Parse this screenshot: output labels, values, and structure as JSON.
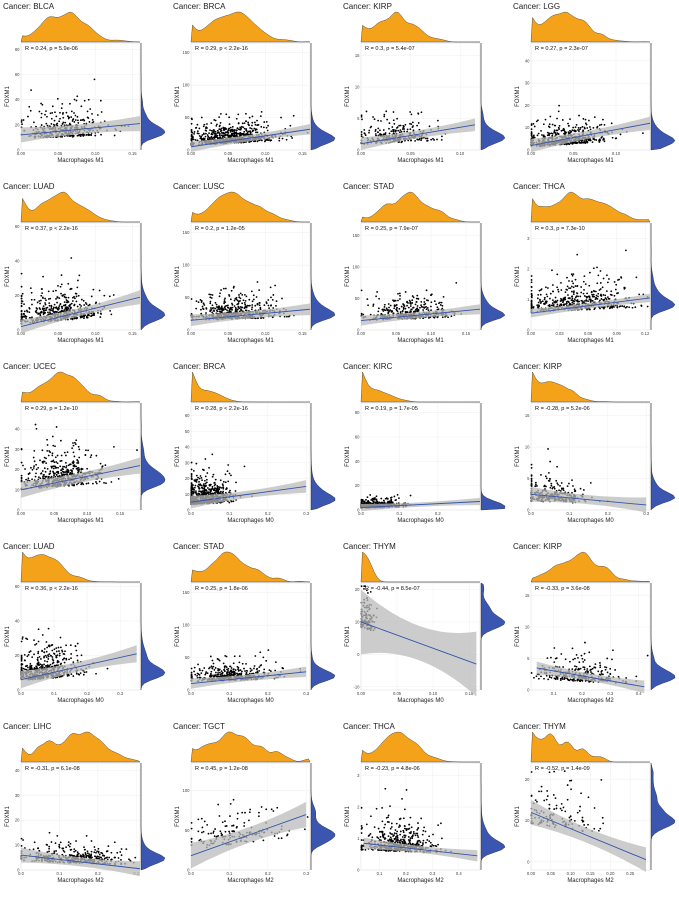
{
  "colors": {
    "density_top": "#f5a21b",
    "density_right": "#3a56b0",
    "points": "#000000",
    "line": "#3355aa",
    "band": "#bbbbbb"
  },
  "chart_data": [
    {
      "type": "scatter",
      "title": "Cancer: BLCA",
      "stat": "R = 0.24, p = 5.9e-06",
      "xlabel": "Macrophages M1",
      "ylabel": "FOXM1",
      "xlim": [
        0,
        0.16
      ],
      "ylim": [
        0,
        85
      ],
      "xticks": [
        "0.00",
        "0.05",
        "0.10",
        "0.15"
      ],
      "yticks": [
        "0",
        "20",
        "40",
        "60",
        "80"
      ],
      "xtv": [
        0,
        0.05,
        0.1,
        0.15
      ],
      "ytv": [
        0,
        20,
        40,
        60,
        80
      ],
      "fit": [
        [
          0,
          12
        ],
        [
          0.16,
          21
        ]
      ],
      "band": [
        3,
        6
      ],
      "xc": 0.06,
      "xs": 0.028,
      "yc": 12,
      "ys": 10,
      "n": 340,
      "seed": 11
    },
    {
      "type": "scatter",
      "title": "Cancer: BRCA",
      "stat": "R = 0.29, p < 2.2e-16",
      "xlabel": "Macrophages M1",
      "ylabel": "FOXM1",
      "xlim": [
        0,
        0.16
      ],
      "ylim": [
        0,
        165
      ],
      "xticks": [
        "0.00",
        "0.05",
        "0.10",
        "0.15"
      ],
      "yticks": [
        "0",
        "50",
        "100",
        "150"
      ],
      "xtv": [
        0,
        0.05,
        0.1,
        0.15
      ],
      "ytv": [
        0,
        50,
        100,
        150
      ],
      "fit": [
        [
          0,
          5
        ],
        [
          0.16,
          32
        ]
      ],
      "band": [
        3,
        8
      ],
      "xc": 0.055,
      "xs": 0.03,
      "yc": 15,
      "ys": 14,
      "n": 700,
      "seed": 12
    },
    {
      "type": "scatter",
      "title": "Cancer: KIRP",
      "stat": "R = 0.3, p = 5.4e-07",
      "xlabel": "Macrophages M1",
      "ylabel": "FOXM1",
      "xlim": [
        0,
        0.12
      ],
      "ylim": [
        0,
        17
      ],
      "xticks": [
        "0.00",
        "0.05",
        "0.10"
      ],
      "yticks": [
        "0",
        "5",
        "10",
        "15"
      ],
      "xtv": [
        0,
        0.05,
        0.1
      ],
      "ytv": [
        0,
        5,
        10,
        15
      ],
      "fit": [
        [
          0,
          1
        ],
        [
          0.115,
          4
        ]
      ],
      "band": [
        0.4,
        1
      ],
      "xc": 0.035,
      "xs": 0.02,
      "yc": 1.5,
      "ys": 1.6,
      "n": 280,
      "seed": 13
    },
    {
      "type": "scatter",
      "title": "Cancer: LGG",
      "stat": "R = 0.27, p = 2.3e-07",
      "xlabel": "Macrophages M1",
      "ylabel": "FOXM1",
      "xlim": [
        0,
        0.14
      ],
      "ylim": [
        0,
        48
      ],
      "xticks": [
        "0.00",
        "0.05",
        "0.10"
      ],
      "yticks": [
        "0",
        "10",
        "20",
        "30",
        "40"
      ],
      "xtv": [
        0,
        0.05,
        0.1
      ],
      "ytv": [
        0,
        10,
        20,
        30,
        40
      ],
      "fit": [
        [
          0,
          2
        ],
        [
          0.14,
          12
        ]
      ],
      "band": [
        1,
        3
      ],
      "xc": 0.04,
      "xs": 0.025,
      "yc": 3,
      "ys": 4,
      "n": 500,
      "seed": 14
    },
    {
      "type": "scatter",
      "title": "Cancer: LUAD",
      "stat": "R = 0.37, p < 2.2e-16",
      "xlabel": "Macrophages M1",
      "ylabel": "FOXM1",
      "xlim": [
        0,
        0.16
      ],
      "ylim": [
        0,
        62
      ],
      "xticks": [
        "0.00",
        "0.05",
        "0.10",
        "0.15"
      ],
      "yticks": [
        "0",
        "20",
        "40",
        "60"
      ],
      "xtv": [
        0,
        0.05,
        0.1,
        0.15
      ],
      "ytv": [
        0,
        20,
        40,
        60
      ],
      "fit": [
        [
          0,
          2
        ],
        [
          0.16,
          19
        ]
      ],
      "band": [
        1,
        4
      ],
      "xc": 0.05,
      "xs": 0.028,
      "yc": 8,
      "ys": 8,
      "n": 480,
      "seed": 15
    },
    {
      "type": "scatter",
      "title": "Cancer: LUSC",
      "stat": "R = 0.2, p = 1.2e-05",
      "xlabel": "Macrophages M1",
      "ylabel": "FOXM1",
      "xlim": [
        0,
        0.16
      ],
      "ylim": [
        0,
        165
      ],
      "xticks": [
        "0.00",
        "0.05",
        "0.10",
        "0.15"
      ],
      "yticks": [
        "0",
        "50",
        "100",
        "150"
      ],
      "xtv": [
        0,
        0.05,
        0.1,
        0.15
      ],
      "ytv": [
        0,
        50,
        100,
        150
      ],
      "fit": [
        [
          0,
          15
        ],
        [
          0.16,
          32
        ]
      ],
      "band": [
        4,
        9
      ],
      "xc": 0.06,
      "xs": 0.03,
      "yc": 22,
      "ys": 16,
      "n": 480,
      "seed": 16
    },
    {
      "type": "scatter",
      "title": "Cancer: STAD",
      "stat": "R = 0.25, p = 7.9e-07",
      "xlabel": "Macrophages M1",
      "ylabel": "FOXM1",
      "xlim": [
        0,
        0.17
      ],
      "ylim": [
        0,
        170
      ],
      "xticks": [
        "0.00",
        "0.05",
        "0.10",
        "0.15"
      ],
      "yticks": [
        "0",
        "50",
        "100",
        "150"
      ],
      "xtv": [
        0,
        0.05,
        0.1,
        0.15
      ],
      "ytv": [
        0,
        50,
        100,
        150
      ],
      "fit": [
        [
          0,
          15
        ],
        [
          0.17,
          33
        ]
      ],
      "band": [
        3,
        8
      ],
      "xc": 0.07,
      "xs": 0.03,
      "yc": 22,
      "ys": 15,
      "n": 380,
      "seed": 17
    },
    {
      "type": "scatter",
      "title": "Cancer: THCA",
      "stat": "R = 0.3, p = 7.3e-10",
      "xlabel": "Macrophages M1",
      "ylabel": "FOXM1",
      "xlim": [
        0,
        0.125
      ],
      "ylim": [
        0,
        3.5
      ],
      "xticks": [
        "0.00",
        "0.03",
        "0.06",
        "0.09",
        "0.12"
      ],
      "yticks": [
        "0",
        "1",
        "2",
        "3"
      ],
      "xtv": [
        0,
        0.03,
        0.06,
        0.09,
        0.12
      ],
      "ytv": [
        0,
        1,
        2,
        3
      ],
      "fit": [
        [
          0,
          0.55
        ],
        [
          0.125,
          1.05
        ]
      ],
      "band": [
        0.06,
        0.14
      ],
      "xc": 0.05,
      "xs": 0.03,
      "yc": 0.8,
      "ys": 0.45,
      "n": 480,
      "seed": 18
    },
    {
      "type": "scatter",
      "title": "Cancer: UCEC",
      "stat": "R = 0.29, p = 1.2e-10",
      "xlabel": "Macrophages M1",
      "ylabel": "FOXM1",
      "xlim": [
        0,
        0.18
      ],
      "ylim": [
        0,
        53
      ],
      "xticks": [
        "0.00",
        "0.05",
        "0.10",
        "0.15"
      ],
      "yticks": [
        "0",
        "10",
        "20",
        "30",
        "40"
      ],
      "xtv": [
        0,
        0.05,
        0.1,
        0.15
      ],
      "ytv": [
        0,
        10,
        20,
        30,
        40
      ],
      "fit": [
        [
          0,
          10
        ],
        [
          0.18,
          22
        ]
      ],
      "band": [
        1.5,
        4
      ],
      "xc": 0.06,
      "xs": 0.03,
      "yc": 14,
      "ys": 8,
      "n": 500,
      "seed": 19
    },
    {
      "type": "scatter",
      "title": "Cancer: BRCA",
      "stat": "R = 0.28, p < 2.2e-16",
      "xlabel": "Macrophages M0",
      "ylabel": "FOXM1",
      "xlim": [
        0,
        0.31
      ],
      "ylim": [
        0,
        68
      ],
      "xticks": [
        "0.0",
        "0.1",
        "0.2",
        "0.3"
      ],
      "yticks": [
        "0",
        "10",
        "20",
        "30",
        "40",
        "50",
        "60"
      ],
      "xtv": [
        0,
        0.1,
        0.2,
        0.3
      ],
      "ytv": [
        0,
        10,
        20,
        30,
        40,
        50,
        60
      ],
      "fit": [
        [
          0,
          5
        ],
        [
          0.3,
          15
        ]
      ],
      "band": [
        1,
        4
      ],
      "xc": 0.03,
      "xs": 0.04,
      "yc": 6,
      "ys": 7,
      "n": 700,
      "seed": 20
    },
    {
      "type": "scatter",
      "title": "Cancer: KIRC",
      "stat": "R = 0.19, p = 1.7e-05",
      "xlabel": "Macrophages M0",
      "ylabel": "FOXM1",
      "xlim": [
        0,
        0.31
      ],
      "ylim": [
        0,
        88
      ],
      "xticks": [
        "0.0",
        "0.1",
        "0.2"
      ],
      "yticks": [
        "0",
        "20",
        "40",
        "60",
        "80"
      ],
      "xtv": [
        0,
        0.1,
        0.2
      ],
      "ytv": [
        0,
        20,
        40,
        60,
        80
      ],
      "fit": [
        [
          0,
          2
        ],
        [
          0.31,
          7
        ]
      ],
      "band": [
        1,
        3
      ],
      "xc": 0.03,
      "xs": 0.04,
      "yc": 3,
      "ys": 3,
      "n": 480,
      "seed": 21
    },
    {
      "type": "scatter",
      "title": "Cancer: KIRP",
      "stat": "R = -0.28, p = 5.2e-06",
      "xlabel": "Macrophages M0",
      "ylabel": "FOXM1",
      "xlim": [
        0,
        0.31
      ],
      "ylim": [
        0,
        17
      ],
      "xticks": [
        "0.0",
        "0.1",
        "0.2",
        "0.3"
      ],
      "yticks": [
        "0",
        "5",
        "10",
        "15"
      ],
      "xtv": [
        0,
        0.1,
        0.2,
        0.3
      ],
      "ytv": [
        0,
        5,
        10,
        15
      ],
      "fit": [
        [
          0,
          2.5
        ],
        [
          0.3,
          0.8
        ]
      ],
      "band": [
        0.4,
        1.2
      ],
      "xc": 0.05,
      "xs": 0.05,
      "yc": 1.6,
      "ys": 1.8,
      "n": 280,
      "seed": 22
    },
    {
      "type": "scatter",
      "title": "Cancer: LUAD",
      "stat": "R = 0.36, p < 2.2e-16",
      "xlabel": "Macrophages M0",
      "ylabel": "FOXM1",
      "xlim": [
        0,
        0.36
      ],
      "ylim": [
        0,
        62
      ],
      "xticks": [
        "0.0",
        "0.1",
        "0.2",
        "0.3"
      ],
      "yticks": [
        "0",
        "20",
        "40",
        "60"
      ],
      "xtv": [
        0,
        0.1,
        0.2,
        0.3
      ],
      "ytv": [
        0,
        20,
        40,
        60
      ],
      "fit": [
        [
          0,
          6
        ],
        [
          0.35,
          21
        ]
      ],
      "band": [
        1,
        5
      ],
      "xc": 0.07,
      "xs": 0.055,
      "yc": 9,
      "ys": 8,
      "n": 480,
      "seed": 23
    },
    {
      "type": "scatter",
      "title": "Cancer: STAD",
      "stat": "R = 0.25, p = 1.8e-06",
      "xlabel": "Macrophages M0",
      "ylabel": "FOXM1",
      "xlim": [
        0,
        0.31
      ],
      "ylim": [
        0,
        165
      ],
      "xticks": [
        "0.0",
        "0.1",
        "0.2",
        "0.3"
      ],
      "yticks": [
        "0",
        "50",
        "100",
        "150"
      ],
      "xtv": [
        0,
        0.1,
        0.2,
        0.3
      ],
      "ytv": [
        0,
        50,
        100,
        150
      ],
      "fit": [
        [
          0,
          10
        ],
        [
          0.3,
          28
        ]
      ],
      "band": [
        3,
        8
      ],
      "xc": 0.1,
      "xs": 0.06,
      "yc": 20,
      "ys": 13,
      "n": 380,
      "seed": 24
    },
    {
      "type": "scatter",
      "title": "Cancer: THYM",
      "stat": "R = -0.44, p = 8.5e-07",
      "xlabel": "Macrophages M0",
      "ylabel": "FOXM1",
      "xlim": [
        0,
        0.165
      ],
      "ylim": [
        -11,
        22
      ],
      "xticks": [
        "0.00",
        "0.05",
        "0.10",
        "0.15"
      ],
      "yticks": [
        "-10",
        "0",
        "10",
        "20"
      ],
      "xtv": [
        0,
        0.05,
        0.1,
        0.15
      ],
      "ytv": [
        -10,
        0,
        10,
        20
      ],
      "fit": [
        [
          0,
          10
        ],
        [
          0.16,
          -3
        ]
      ],
      "band": [
        1,
        10
      ],
      "xc": 0.008,
      "xs": 0.006,
      "yc": 9,
      "ys": 5,
      "n": 120,
      "seed": 25
    },
    {
      "type": "scatter",
      "title": "Cancer: KIRP",
      "stat": "R = -0.33, p = 3.6e-08",
      "xlabel": "Macrophages M2",
      "ylabel": "FOXM1",
      "xlim": [
        0.02,
        0.44
      ],
      "ylim": [
        0,
        17
      ],
      "xticks": [
        "0.1",
        "0.2",
        "0.3",
        "0.4"
      ],
      "yticks": [
        "0",
        "5",
        "10",
        "15"
      ],
      "xtv": [
        0.1,
        0.2,
        0.3,
        0.4
      ],
      "ytv": [
        0,
        5,
        10,
        15
      ],
      "fit": [
        [
          0.04,
          3.5
        ],
        [
          0.42,
          0.5
        ]
      ],
      "band": [
        0.3,
        1
      ],
      "xc": 0.2,
      "xs": 0.08,
      "yc": 1.6,
      "ys": 1.6,
      "n": 280,
      "seed": 26
    },
    {
      "type": "scatter",
      "title": "Cancer: LIHC",
      "stat": "R = -0.31, p = 6.1e-08",
      "xlabel": "Macrophages M2",
      "ylabel": "FOXM1",
      "xlim": [
        0,
        0.31
      ],
      "ylim": [
        0,
        43
      ],
      "xticks": [
        "0.0",
        "0.1",
        "0.2",
        "0.3"
      ],
      "yticks": [
        "0",
        "10",
        "20",
        "30",
        "40"
      ],
      "xtv": [
        0,
        0.1,
        0.2,
        0.3
      ],
      "ytv": [
        0,
        10,
        20,
        30,
        40
      ],
      "fit": [
        [
          0,
          6
        ],
        [
          0.31,
          0.5
        ]
      ],
      "band": [
        1,
        3
      ],
      "xc": 0.14,
      "xs": 0.07,
      "yc": 4,
      "ys": 3.5,
      "n": 360,
      "seed": 27
    },
    {
      "type": "scatter",
      "title": "Cancer: TGCT",
      "stat": "R = 0.45, p = 1.2e-08",
      "xlabel": "Macrophages M2",
      "ylabel": "FOXM1",
      "xlim": [
        0,
        0.31
      ],
      "ylim": [
        0,
        135
      ],
      "xticks": [
        "0.0",
        "0.1",
        "0.2",
        "0.3"
      ],
      "yticks": [
        "0",
        "50",
        "100"
      ],
      "xtv": [
        0,
        0.1,
        0.2,
        0.3
      ],
      "ytv": [
        0,
        50,
        100
      ],
      "fit": [
        [
          0,
          18
        ],
        [
          0.3,
          70
        ]
      ],
      "band": [
        6,
        16
      ],
      "xc": 0.12,
      "xs": 0.07,
      "yc": 40,
      "ys": 22,
      "n": 150,
      "seed": 28
    },
    {
      "type": "scatter",
      "title": "Cancer: THCA",
      "stat": "R = -0.23, p = 4.8e-06",
      "xlabel": "Macrophages M2",
      "ylabel": "FOXM1",
      "xlim": [
        0.03,
        0.48
      ],
      "ylim": [
        0,
        3.4
      ],
      "xticks": [
        "0.1",
        "0.2",
        "0.3",
        "0.4"
      ],
      "yticks": [
        "0",
        "1",
        "2",
        "3"
      ],
      "xtv": [
        0.1,
        0.2,
        0.3,
        0.4
      ],
      "ytv": [
        0,
        1,
        2,
        3
      ],
      "fit": [
        [
          0.04,
          0.85
        ],
        [
          0.47,
          0.45
        ]
      ],
      "band": [
        0.06,
        0.18
      ],
      "xc": 0.17,
      "xs": 0.07,
      "yc": 0.7,
      "ys": 0.4,
      "n": 480,
      "seed": 29
    },
    {
      "type": "scatter",
      "title": "Cancer: THYM",
      "stat": "R = -0.52, p = 1.4e-09",
      "xlabel": "Macrophages M2",
      "ylabel": "FOXM1",
      "xlim": [
        0,
        0.3
      ],
      "ylim": [
        -2,
        24
      ],
      "xticks": [
        "0.00",
        "0.05",
        "0.10",
        "0.15",
        "0.20",
        "0.25"
      ],
      "yticks": [
        "0",
        "10",
        "20"
      ],
      "xtv": [
        0,
        0.05,
        0.1,
        0.15,
        0.2,
        0.25
      ],
      "ytv": [
        0,
        10,
        20
      ],
      "fit": [
        [
          0,
          12
        ],
        [
          0.29,
          0.5
        ]
      ],
      "band": [
        1,
        3
      ],
      "xc": 0.07,
      "xs": 0.05,
      "yc": 10,
      "ys": 5,
      "n": 120,
      "seed": 30
    }
  ]
}
